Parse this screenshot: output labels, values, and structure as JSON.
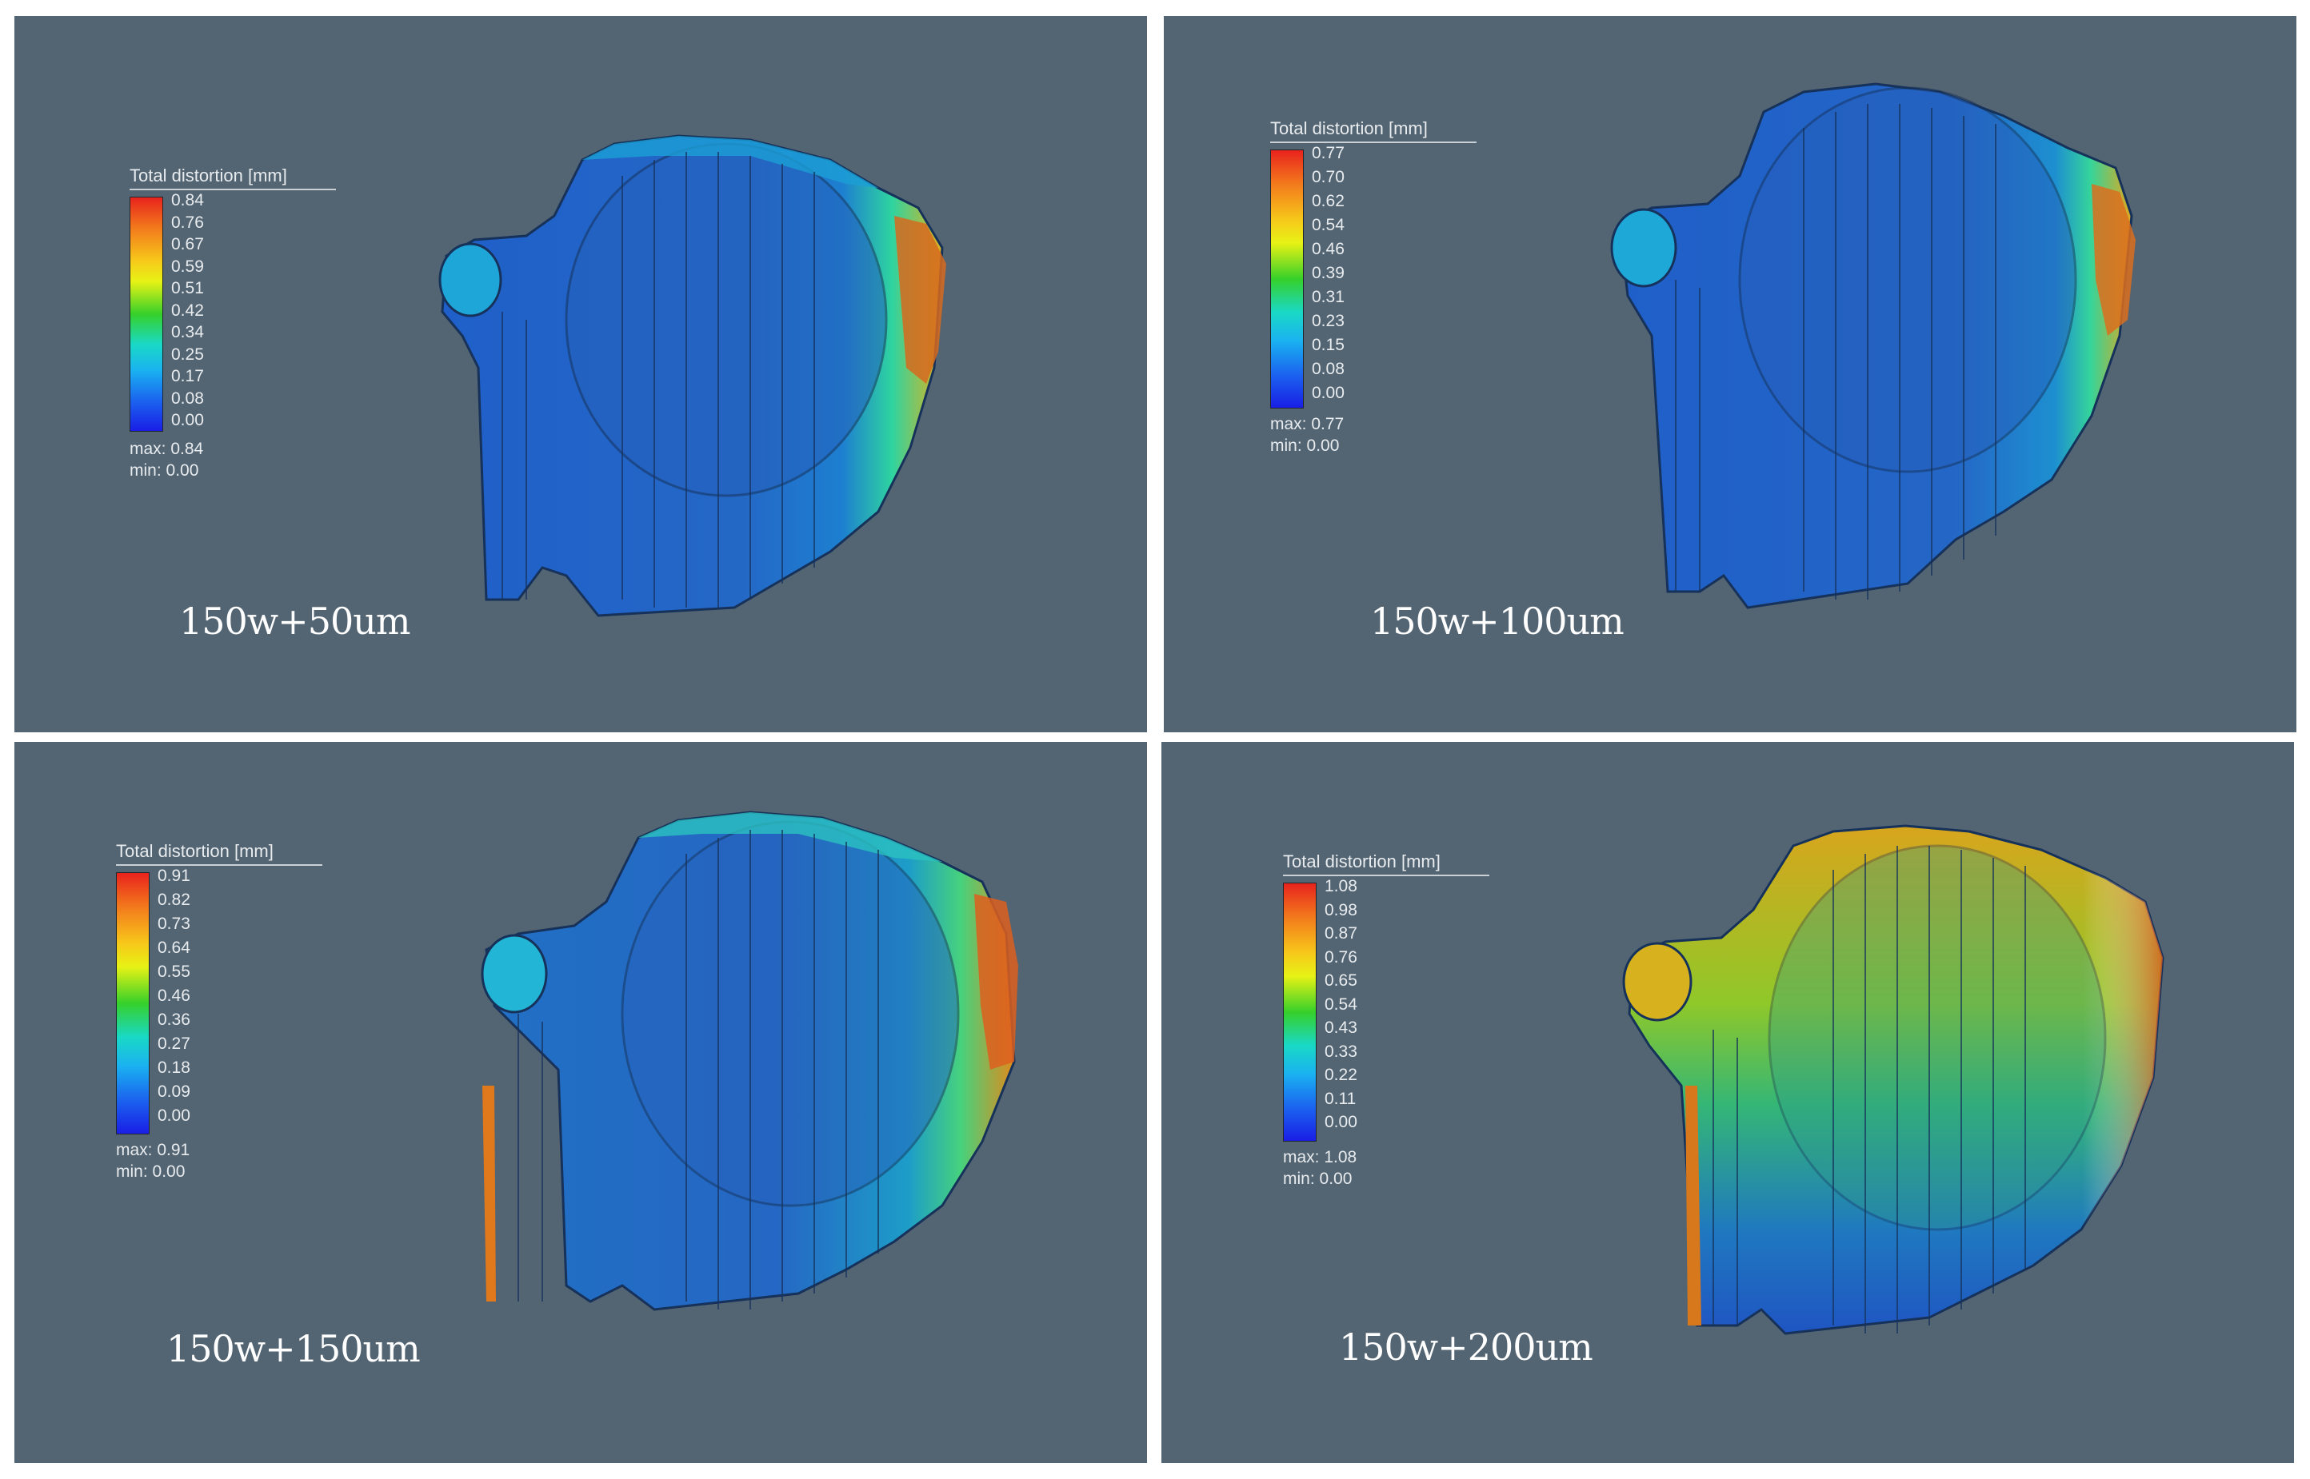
{
  "panels": [
    {
      "legend_title": "Total distortion [mm]",
      "ticks": [
        "0.84",
        "0.76",
        "0.67",
        "0.59",
        "0.51",
        "0.42",
        "0.34",
        "0.25",
        "0.17",
        "0.08",
        "0.00"
      ],
      "max_label": "max:",
      "max_value": "0.84",
      "min_label": "min:",
      "min_value": "0.00",
      "caption": "150w+50um"
    },
    {
      "legend_title": "Total distortion [mm]",
      "ticks": [
        "0.77",
        "0.70",
        "0.62",
        "0.54",
        "0.46",
        "0.39",
        "0.31",
        "0.23",
        "0.15",
        "0.08",
        "0.00"
      ],
      "max_label": "max:",
      "max_value": "0.77",
      "min_label": "min:",
      "min_value": "0.00",
      "caption": "150w+100um"
    },
    {
      "legend_title": "Total distortion [mm]",
      "ticks": [
        "0.91",
        "0.82",
        "0.73",
        "0.64",
        "0.55",
        "0.46",
        "0.36",
        "0.27",
        "0.18",
        "0.09",
        "0.00"
      ],
      "max_label": "max:",
      "max_value": "0.91",
      "min_label": "min:",
      "min_value": "0.00",
      "caption": "150w+150um"
    },
    {
      "legend_title": "Total distortion [mm]",
      "ticks": [
        "1.08",
        "0.98",
        "0.87",
        "0.76",
        "0.65",
        "0.54",
        "0.43",
        "0.33",
        "0.22",
        "0.11",
        "0.00"
      ],
      "max_label": "max:",
      "max_value": "1.08",
      "min_label": "min:",
      "min_value": "0.00",
      "caption": "150w+200um"
    }
  ],
  "colors": {
    "background": "#536472",
    "scale_high": "#e8231d",
    "scale_mid": "#36d02a",
    "scale_low": "#1a1ee6"
  }
}
